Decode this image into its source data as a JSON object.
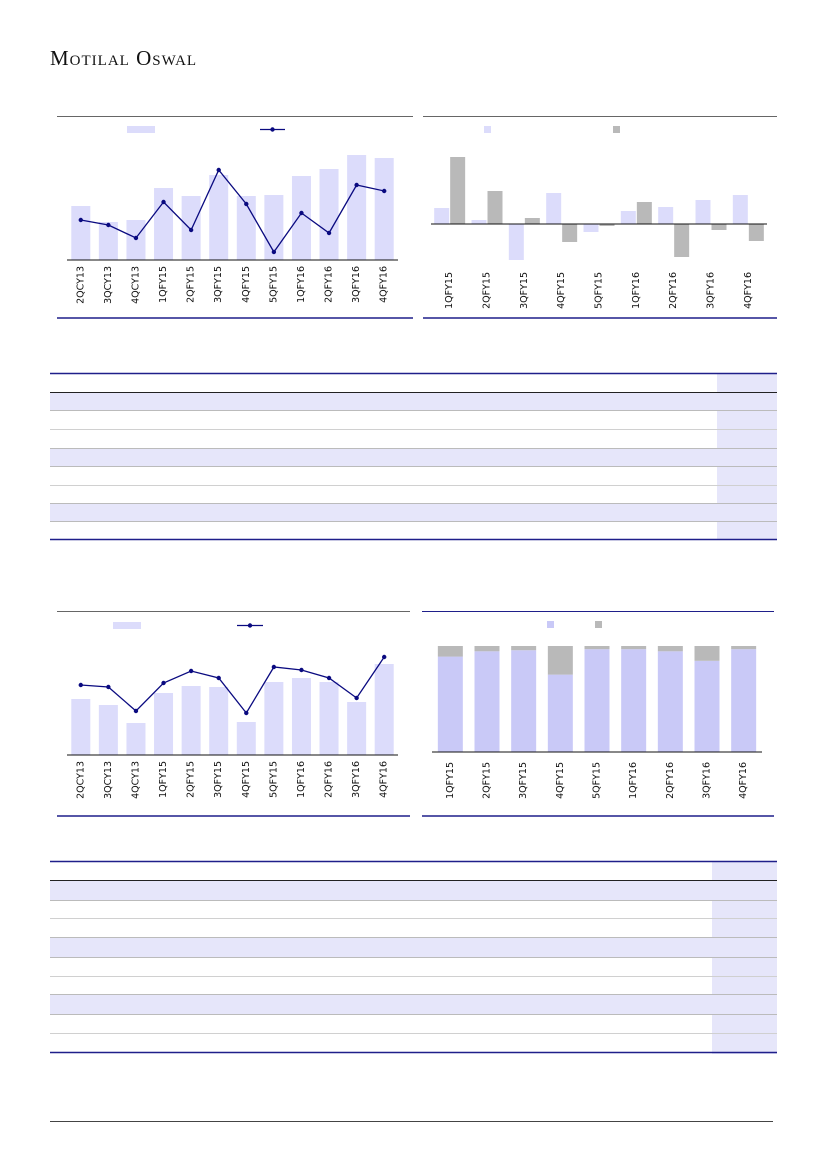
{
  "header": {
    "logo": "Motilal Oswal"
  },
  "colors": {
    "bar": "#dcdcfb",
    "bar_dark": "#c9c9f7",
    "line": "#0a0a80",
    "grey": "#b9b9b9",
    "rule": "#1f1f8a",
    "band": "#e6e6fa"
  },
  "chart_data": [
    {
      "type": "bar+line",
      "categories": [
        "2QCY13",
        "3QCY13",
        "4QCY13",
        "1QFY15",
        "2QFY15",
        "3QFY15",
        "4QFY15",
        "5QFY15",
        "1QFY16",
        "2QFY16",
        "3QFY16",
        "4QFY16"
      ],
      "series": [
        {
          "kind": "bar",
          "values": [
            54,
            38,
            40,
            72,
            64,
            85,
            64,
            65,
            84,
            91,
            105,
            102
          ]
        },
        {
          "kind": "line",
          "values": [
            40,
            35,
            22,
            58,
            30,
            90,
            56,
            8,
            47,
            27,
            75,
            69
          ]
        }
      ]
    },
    {
      "type": "bar",
      "categories": [
        "1QFY15",
        "2QFY15",
        "3QFY15",
        "4QFY15",
        "5QFY15",
        "1QFY16",
        "2QFY16",
        "3QFY16",
        "4QFY16"
      ],
      "series": [
        {
          "kind": "bar",
          "values": [
            16,
            4,
            -36,
            31,
            -8,
            13,
            17,
            24,
            29
          ]
        },
        {
          "kind": "bar",
          "values": [
            67,
            33,
            6,
            -18,
            -2,
            22,
            -33,
            -6,
            -17
          ]
        }
      ]
    },
    {
      "type": "bar+line",
      "categories": [
        "2QCY13",
        "3QCY13",
        "4QCY13",
        "1QFY15",
        "2QFY15",
        "3QFY15",
        "4QFY15",
        "5QFY15",
        "1QFY16",
        "2QFY16",
        "3QFY16",
        "4QFY16"
      ],
      "series": [
        {
          "kind": "bar",
          "values": [
            56,
            50,
            32,
            62,
            69,
            68,
            33,
            73,
            77,
            73,
            53,
            91
          ]
        },
        {
          "kind": "line",
          "values": [
            70,
            68,
            44,
            72,
            84,
            77,
            42,
            88,
            85,
            77,
            57,
            98
          ]
        }
      ]
    },
    {
      "type": "stacked-bar",
      "categories": [
        "1QFY15",
        "2QFY15",
        "3QFY15",
        "4QFY15",
        "5QFY15",
        "1QFY16",
        "2QFY16",
        "3QFY16",
        "4QFY16"
      ],
      "ylim": [
        0,
        100
      ],
      "series": [
        {
          "kind": "bar",
          "values": [
            90,
            95,
            96,
            73,
            97,
            97,
            95,
            86,
            97
          ]
        },
        {
          "kind": "bar",
          "values": [
            10,
            5,
            4,
            27,
            3,
            3,
            5,
            14,
            3
          ]
        }
      ]
    }
  ]
}
